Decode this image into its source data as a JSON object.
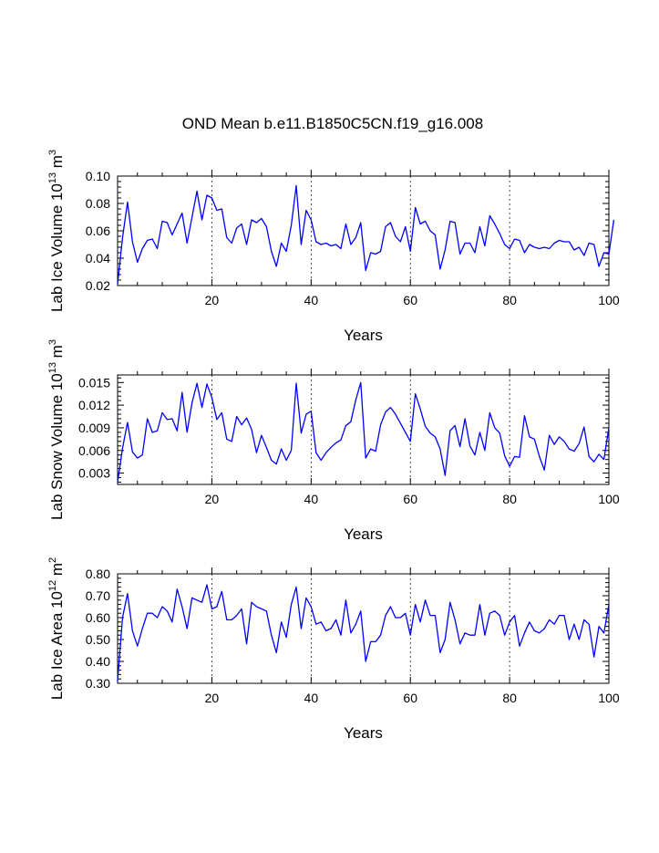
{
  "title": "OND Mean b.e11.B1850C5CN.f19_g16.008",
  "line_color": "#0000ff",
  "chart_data": [
    {
      "type": "line",
      "ylabel_main": "Lab Ice Volume 10",
      "ylabel_exp": "13",
      "ylabel_unit": " m",
      "ylabel_unit_exp": "3",
      "xlabel": "Years",
      "xlim": [
        1,
        100
      ],
      "ylim": [
        0.02,
        0.1
      ],
      "xticks": [
        20,
        40,
        60,
        80,
        100
      ],
      "xtick_labels": [
        "20",
        "40",
        "60",
        "80",
        "100"
      ],
      "yticks": [
        0.02,
        0.04,
        0.06,
        0.08,
        0.1
      ],
      "ytick_labels": [
        "0.02",
        "0.04",
        "0.06",
        "0.08",
        "0.10"
      ],
      "grid_x": [
        20,
        40,
        60,
        80
      ],
      "x_start": 1,
      "values": [
        0.021,
        0.055,
        0.081,
        0.052,
        0.037,
        0.047,
        0.053,
        0.054,
        0.047,
        0.067,
        0.066,
        0.057,
        0.065,
        0.073,
        0.051,
        0.07,
        0.089,
        0.068,
        0.086,
        0.084,
        0.075,
        0.076,
        0.055,
        0.051,
        0.062,
        0.065,
        0.05,
        0.068,
        0.066,
        0.069,
        0.063,
        0.045,
        0.034,
        0.051,
        0.045,
        0.064,
        0.093,
        0.05,
        0.075,
        0.068,
        0.052,
        0.05,
        0.051,
        0.049,
        0.05,
        0.047,
        0.065,
        0.05,
        0.055,
        0.066,
        0.031,
        0.044,
        0.043,
        0.045,
        0.063,
        0.066,
        0.056,
        0.052,
        0.063,
        0.045,
        0.077,
        0.065,
        0.067,
        0.06,
        0.057,
        0.032,
        0.046,
        0.067,
        0.066,
        0.043,
        0.051,
        0.051,
        0.044,
        0.063,
        0.049,
        0.071,
        0.065,
        0.058,
        0.05,
        0.047,
        0.054,
        0.053,
        0.044,
        0.05,
        0.048,
        0.047,
        0.048,
        0.047,
        0.051,
        0.053,
        0.052,
        0.052,
        0.046,
        0.048,
        0.042,
        0.051,
        0.05,
        0.034,
        0.044,
        0.043,
        0.068
      ]
    },
    {
      "type": "line",
      "ylabel_main": "Lab Snow Volume 10",
      "ylabel_exp": "13",
      "ylabel_unit": " m",
      "ylabel_unit_exp": "3",
      "xlabel": "Years",
      "xlim": [
        1,
        100
      ],
      "ylim": [
        0.0015,
        0.016
      ],
      "xticks": [
        20,
        40,
        60,
        80,
        100
      ],
      "xtick_labels": [
        "20",
        "40",
        "60",
        "80",
        "100"
      ],
      "yticks": [
        0.003,
        0.006,
        0.009,
        0.012,
        0.015
      ],
      "ytick_labels": [
        "0.003",
        "0.006",
        "0.009",
        "0.012",
        "0.015"
      ],
      "grid_x": [
        20,
        40,
        60,
        80
      ],
      "x_start": 1,
      "values": [
        0.0018,
        0.0063,
        0.0097,
        0.0058,
        0.005,
        0.0054,
        0.0102,
        0.0084,
        0.0086,
        0.011,
        0.0101,
        0.0102,
        0.0086,
        0.0137,
        0.0084,
        0.0123,
        0.0149,
        0.0117,
        0.0148,
        0.013,
        0.0101,
        0.011,
        0.0075,
        0.0072,
        0.0105,
        0.0094,
        0.0103,
        0.0088,
        0.0057,
        0.008,
        0.0064,
        0.0047,
        0.0042,
        0.0062,
        0.0047,
        0.006,
        0.0149,
        0.0083,
        0.0108,
        0.0112,
        0.0057,
        0.0047,
        0.0057,
        0.0064,
        0.007,
        0.0074,
        0.0093,
        0.0098,
        0.0127,
        0.015,
        0.005,
        0.0062,
        0.0059,
        0.0094,
        0.0111,
        0.0117,
        0.0108,
        0.0096,
        0.0084,
        0.0072,
        0.0135,
        0.0115,
        0.0092,
        0.0083,
        0.0078,
        0.0062,
        0.0027,
        0.0086,
        0.0093,
        0.0065,
        0.0102,
        0.0066,
        0.0054,
        0.0084,
        0.006,
        0.011,
        0.009,
        0.0083,
        0.0053,
        0.0039,
        0.0052,
        0.0051,
        0.0106,
        0.0078,
        0.0075,
        0.0052,
        0.0034,
        0.008,
        0.0068,
        0.0078,
        0.0072,
        0.0062,
        0.0059,
        0.0069,
        0.0091,
        0.0052,
        0.0045,
        0.0055,
        0.0048,
        0.009
      ]
    },
    {
      "type": "line",
      "ylabel_main": "Lab Ice Area 10",
      "ylabel_exp": "12",
      "ylabel_unit": " m",
      "ylabel_unit_exp": "2",
      "xlabel": "Years",
      "xlim": [
        1,
        100
      ],
      "ylim": [
        0.3,
        0.8
      ],
      "xticks": [
        20,
        40,
        60,
        80,
        100
      ],
      "xtick_labels": [
        "20",
        "40",
        "60",
        "80",
        "100"
      ],
      "yticks": [
        0.3,
        0.4,
        0.5,
        0.6,
        0.7,
        0.8
      ],
      "ytick_labels": [
        "0.30",
        "0.40",
        "0.50",
        "0.60",
        "0.70",
        "0.80"
      ],
      "grid_x": [
        20,
        40,
        60,
        80
      ],
      "x_start": 1,
      "values": [
        0.31,
        0.6,
        0.71,
        0.54,
        0.47,
        0.55,
        0.62,
        0.62,
        0.6,
        0.65,
        0.63,
        0.58,
        0.73,
        0.65,
        0.55,
        0.69,
        0.68,
        0.67,
        0.75,
        0.64,
        0.65,
        0.72,
        0.59,
        0.59,
        0.61,
        0.64,
        0.48,
        0.67,
        0.65,
        0.64,
        0.63,
        0.52,
        0.44,
        0.58,
        0.51,
        0.66,
        0.74,
        0.55,
        0.69,
        0.65,
        0.57,
        0.58,
        0.54,
        0.55,
        0.59,
        0.52,
        0.68,
        0.53,
        0.57,
        0.63,
        0.4,
        0.49,
        0.49,
        0.52,
        0.61,
        0.65,
        0.6,
        0.6,
        0.62,
        0.52,
        0.66,
        0.58,
        0.68,
        0.61,
        0.61,
        0.44,
        0.5,
        0.67,
        0.59,
        0.48,
        0.53,
        0.52,
        0.52,
        0.66,
        0.52,
        0.62,
        0.63,
        0.61,
        0.52,
        0.58,
        0.61,
        0.47,
        0.53,
        0.58,
        0.54,
        0.53,
        0.55,
        0.59,
        0.57,
        0.61,
        0.61,
        0.5,
        0.57,
        0.5,
        0.59,
        0.57,
        0.42,
        0.56,
        0.53,
        0.66
      ]
    }
  ]
}
